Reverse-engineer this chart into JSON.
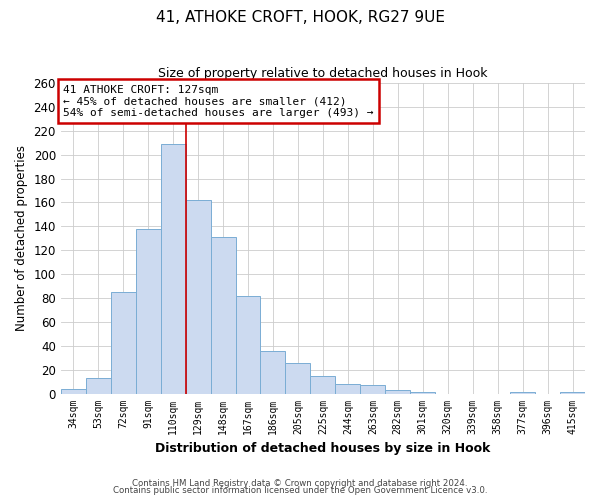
{
  "title": "41, ATHOKE CROFT, HOOK, RG27 9UE",
  "subtitle": "Size of property relative to detached houses in Hook",
  "xlabel": "Distribution of detached houses by size in Hook",
  "ylabel": "Number of detached properties",
  "bar_labels": [
    "34sqm",
    "53sqm",
    "72sqm",
    "91sqm",
    "110sqm",
    "129sqm",
    "148sqm",
    "167sqm",
    "186sqm",
    "205sqm",
    "225sqm",
    "244sqm",
    "263sqm",
    "282sqm",
    "301sqm",
    "320sqm",
    "339sqm",
    "358sqm",
    "377sqm",
    "396sqm",
    "415sqm"
  ],
  "bar_values": [
    4,
    13,
    85,
    138,
    209,
    162,
    131,
    82,
    36,
    26,
    15,
    8,
    7,
    3,
    1,
    0,
    0,
    0,
    1,
    0,
    1
  ],
  "bar_color": "#ccdaf0",
  "bar_edge_color": "#7aadd4",
  "vline_x_index": 4,
  "vline_color": "#cc0000",
  "ylim": [
    0,
    260
  ],
  "yticks": [
    0,
    20,
    40,
    60,
    80,
    100,
    120,
    140,
    160,
    180,
    200,
    220,
    240,
    260
  ],
  "annotation_text": "41 ATHOKE CROFT: 127sqm\n← 45% of detached houses are smaller (412)\n54% of semi-detached houses are larger (493) →",
  "annotation_box_color": "#ffffff",
  "annotation_box_edge_color": "#cc0000",
  "footer_line1": "Contains HM Land Registry data © Crown copyright and database right 2024.",
  "footer_line2": "Contains public sector information licensed under the Open Government Licence v3.0.",
  "background_color": "#ffffff",
  "grid_color": "#cccccc"
}
